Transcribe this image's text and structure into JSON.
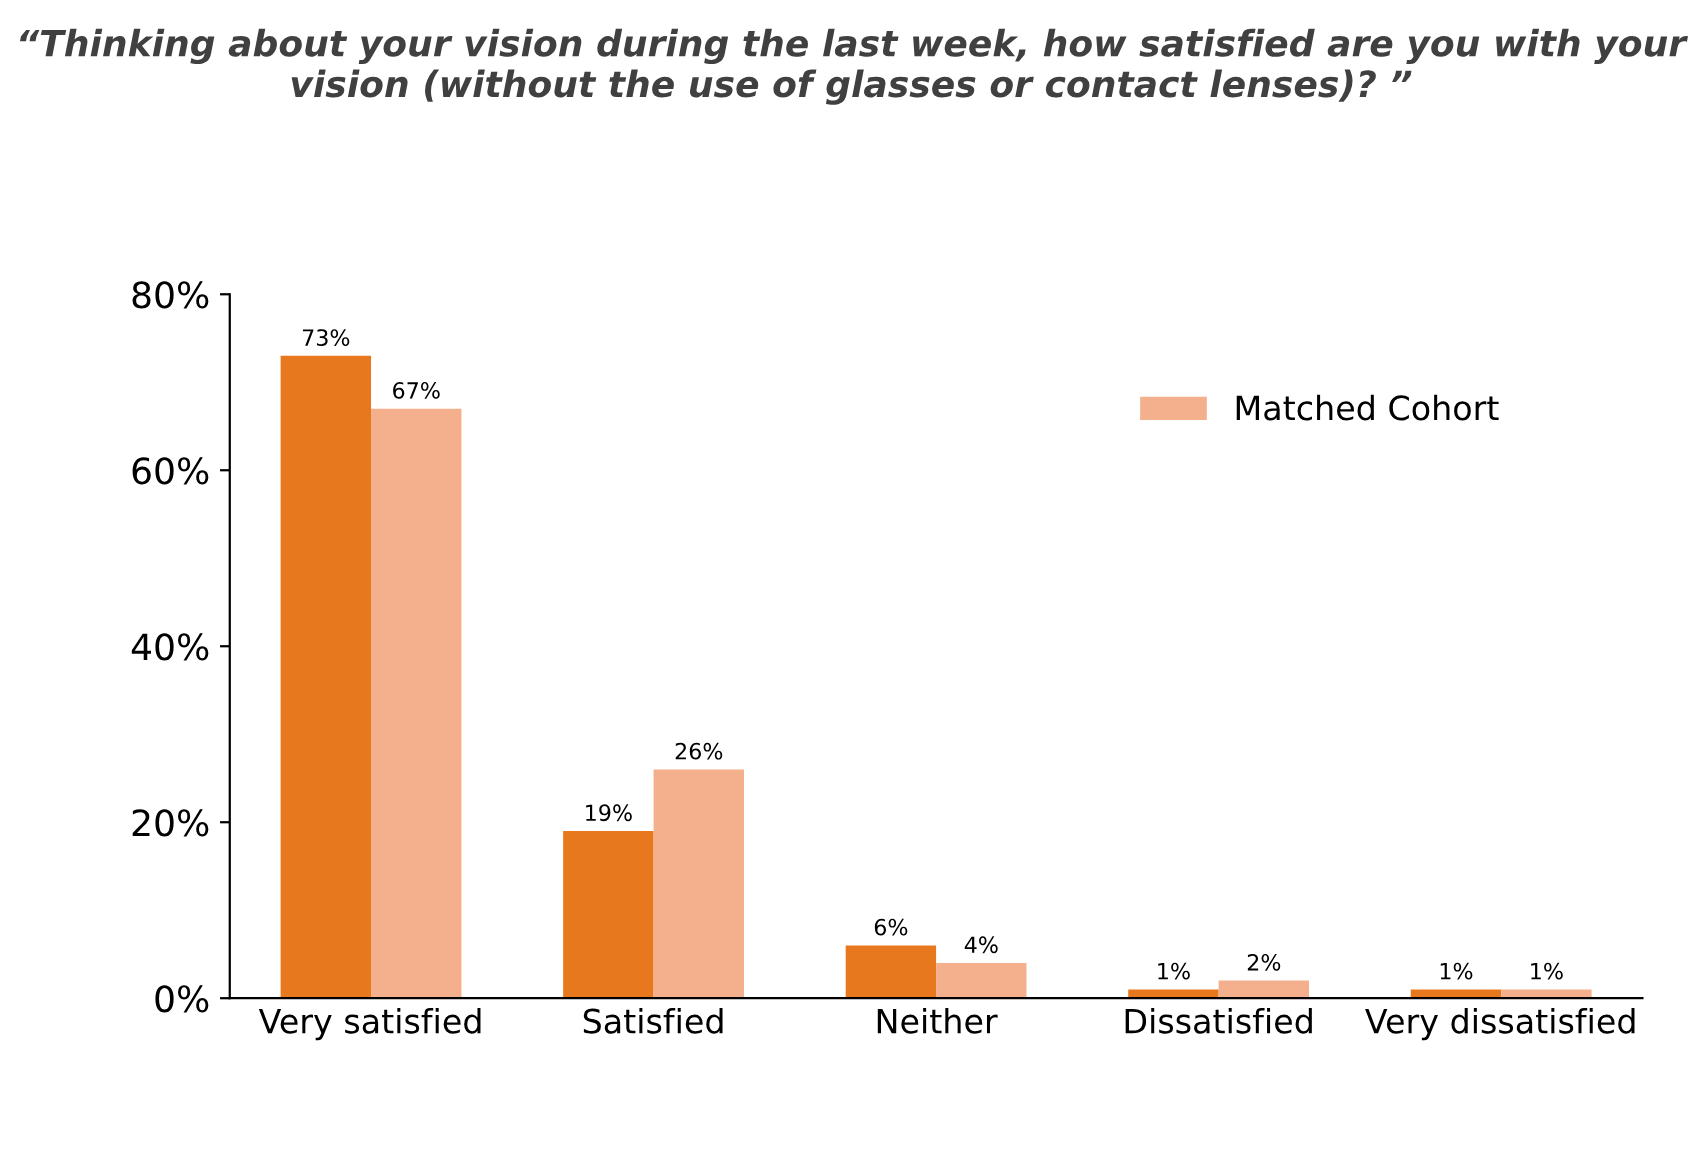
{
  "chart_data": {
    "type": "bar",
    "title": "“Thinking about your vision during the last week, how satisfied are you with your vision (without the use of glasses or contact lenses)? ”",
    "categories": [
      "Very satisfied",
      "Satisfied",
      "Neither",
      "Dissatisfied",
      "Very dissatisfied"
    ],
    "series": [
      {
        "color": "#e8781e",
        "values": [
          73,
          19,
          6,
          1,
          1
        ],
        "value_labels": [
          "73%",
          "19%",
          "6%",
          "1%",
          "1%"
        ]
      },
      {
        "name": "Matched Cohort",
        "color": "#f4b08c",
        "values": [
          67,
          26,
          4,
          2,
          1
        ],
        "value_labels": [
          "67%",
          "26%",
          "4%",
          "2%",
          "1%"
        ]
      }
    ],
    "ylim": [
      0,
      80
    ],
    "yticks": [
      {
        "value": 0,
        "label": "0%"
      },
      {
        "value": 20,
        "label": "20%"
      },
      {
        "value": 40,
        "label": "40%"
      },
      {
        "value": 60,
        "label": "60%"
      },
      {
        "value": 80,
        "label": "80%"
      }
    ],
    "grid": false,
    "legend": "top right"
  }
}
